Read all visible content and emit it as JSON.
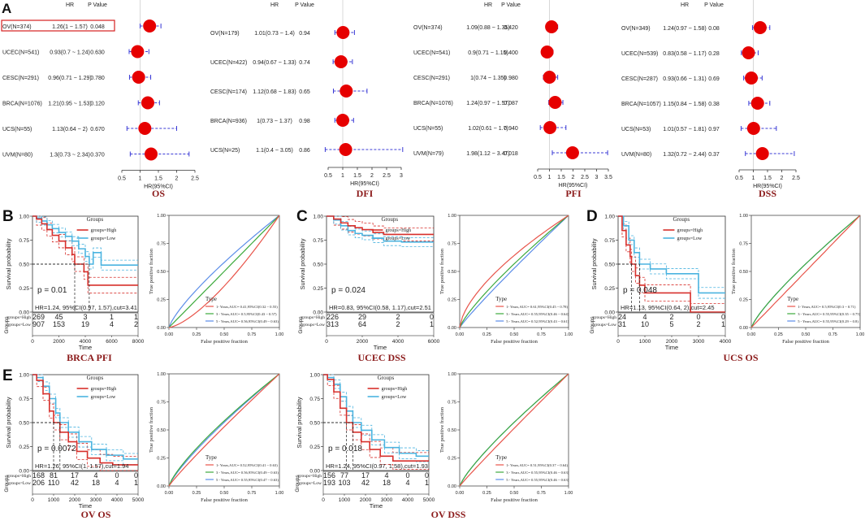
{
  "panel_labels": {
    "a": "A",
    "b": "B",
    "c": "C",
    "d": "D",
    "e": "E"
  },
  "forest_header": {
    "hr": "HR",
    "pvalue": "P Value",
    "axis_title": "HR(95%CI)"
  },
  "survival_common": {
    "ylabel": "Survival probability",
    "xlabel": "Time",
    "groups_title": "Groups",
    "legend_high": "groups=High",
    "legend_low": "groups=Low",
    "risk_ylabel": "Groups",
    "risk_high": "groups=High",
    "risk_low": "groups=Low",
    "yticks": [
      "1.00",
      "0.75",
      "0.50",
      "0.25",
      "0.00"
    ]
  },
  "roc_common": {
    "ylabel": "True positive fraction",
    "xlabel": "False positive fraction",
    "type_title": "Type",
    "ticks": [
      "0.00",
      "0.25",
      "0.50",
      "0.75",
      "1.00"
    ]
  },
  "colors": {
    "high": "#d7302c",
    "low": "#4bb4e0",
    "roc1": "#e8544a",
    "roc3": "#3daa3d",
    "roc5": "#5b8de8",
    "caption": "#8b1a1a",
    "dot": "#e60000",
    "ci": "#3b3bd6"
  },
  "chart_data": [
    {
      "type": "forest",
      "name": "forest-os",
      "caption": "OS",
      "highlight": 0,
      "xlim": [
        0.5,
        2.5
      ],
      "ticks": [
        "0.5",
        "1",
        "1.5",
        "2",
        "2.5"
      ],
      "rows": [
        {
          "label": "OV(N=374)",
          "hr_text": "1.26(1 ~ 1.57)",
          "p": "0.048",
          "hr": 1.26,
          "lo": 1.0,
          "hi": 1.57
        },
        {
          "label": "UCEC(N=541)",
          "hr_text": "0.93(0.7 ~ 1.24)",
          "p": "0.630",
          "hr": 0.93,
          "lo": 0.7,
          "hi": 1.24
        },
        {
          "label": "CESC(N=291)",
          "hr_text": "0.96(0.71 ~ 1.29)",
          "p": "0.780",
          "hr": 0.96,
          "lo": 0.71,
          "hi": 1.29
        },
        {
          "label": "BRCA(N=1076)",
          "hr_text": "1.21(0.95 ~ 1.53)",
          "p": "0.120",
          "hr": 1.21,
          "lo": 0.95,
          "hi": 1.53
        },
        {
          "label": "UCS(N=55)",
          "hr_text": "1.13(0.64 ~ 2)",
          "p": "0.670",
          "hr": 1.13,
          "lo": 0.64,
          "hi": 2.0
        },
        {
          "label": "UVM(N=80)",
          "hr_text": "1.3(0.73 ~ 2.34)",
          "p": "0.370",
          "hr": 1.3,
          "lo": 0.73,
          "hi": 2.34
        }
      ]
    },
    {
      "type": "forest",
      "name": "forest-dfi",
      "caption": "DFI",
      "highlight": -1,
      "xlim": [
        0.5,
        3
      ],
      "ticks": [
        "0.5",
        "1",
        "1.5",
        "2",
        "2.5",
        "3"
      ],
      "rows": [
        {
          "label": "OV(N=179)",
          "hr_text": "1.01(0.73 ~ 1.4)",
          "p": "0.94",
          "hr": 1.01,
          "lo": 0.73,
          "hi": 1.4
        },
        {
          "label": "UCEC(N=422)",
          "hr_text": "0.94(0.67 ~ 1.33)",
          "p": "0.74",
          "hr": 0.94,
          "lo": 0.67,
          "hi": 1.33
        },
        {
          "label": "CESC(N=174)",
          "hr_text": "1.12(0.68 ~ 1.83)",
          "p": "0.65",
          "hr": 1.12,
          "lo": 0.68,
          "hi": 1.83
        },
        {
          "label": "BRCA(N=936)",
          "hr_text": "1(0.73 ~ 1.37)",
          "p": "0.98",
          "hr": 1.0,
          "lo": 0.73,
          "hi": 1.37
        },
        {
          "label": "UCS(N=25)",
          "hr_text": "1.1(0.4 ~ 3.05)",
          "p": "0.86",
          "hr": 1.1,
          "lo": 0.4,
          "hi": 3.05
        }
      ]
    },
    {
      "type": "forest",
      "name": "forest-pfi",
      "caption": "PFI",
      "highlight": -1,
      "xlim": [
        0.5,
        3.5
      ],
      "ticks": [
        "0.5",
        "1",
        "1.5",
        "2",
        "2.5",
        "3",
        "3.5"
      ],
      "rows": [
        {
          "label": "OV(N=374)",
          "hr_text": "1.09(0.88 ~ 1.35)",
          "p": "0.420",
          "hr": 1.09,
          "lo": 0.88,
          "hi": 1.35
        },
        {
          "label": "UCEC(N=541)",
          "hr_text": "0.9(0.71 ~ 1.15)",
          "p": "0.400",
          "hr": 0.9,
          "lo": 0.71,
          "hi": 1.15
        },
        {
          "label": "CESC(N=291)",
          "hr_text": "1(0.74 ~ 1.35)",
          "p": "0.980",
          "hr": 1.0,
          "lo": 0.74,
          "hi": 1.35
        },
        {
          "label": "BRCA(N=1076)",
          "hr_text": "1.24(0.97 ~ 1.57)",
          "p": "0.087",
          "hr": 1.24,
          "lo": 0.97,
          "hi": 1.57
        },
        {
          "label": "UCS(N=55)",
          "hr_text": "1.02(0.61 ~ 1.7)",
          "p": "0.940",
          "hr": 1.02,
          "lo": 0.61,
          "hi": 1.7
        },
        {
          "label": "UVM(N=79)",
          "hr_text": "1.98(1.12 ~ 3.47)",
          "p": "0.018",
          "hr": 1.98,
          "lo": 1.12,
          "hi": 3.47
        }
      ]
    },
    {
      "type": "forest",
      "name": "forest-dss",
      "caption": "DSS",
      "highlight": -1,
      "xlim": [
        0.5,
        2.5
      ],
      "ticks": [
        "0.5",
        "1",
        "1.5",
        "2",
        "2.5"
      ],
      "rows": [
        {
          "label": "OV(N=349)",
          "hr_text": "1.24(0.97 ~ 1.58)",
          "p": "0.08",
          "hr": 1.24,
          "lo": 0.97,
          "hi": 1.58
        },
        {
          "label": "UCEC(N=539)",
          "hr_text": "0.83(0.58 ~ 1.17)",
          "p": "0.28",
          "hr": 0.83,
          "lo": 0.58,
          "hi": 1.17
        },
        {
          "label": "CESC(N=287)",
          "hr_text": "0.93(0.66 ~ 1.31)",
          "p": "0.69",
          "hr": 0.93,
          "lo": 0.66,
          "hi": 1.31
        },
        {
          "label": "BRCA(N=1057)",
          "hr_text": "1.15(0.84 ~ 1.58)",
          "p": "0.38",
          "hr": 1.15,
          "lo": 0.84,
          "hi": 1.58
        },
        {
          "label": "UCS(N=53)",
          "hr_text": "1.01(0.57 ~ 1.81)",
          "p": "0.97",
          "hr": 1.01,
          "lo": 0.57,
          "hi": 1.81
        },
        {
          "label": "UVM(N=80)",
          "hr_text": "1.32(0.72 ~ 2.44)",
          "p": "0.37",
          "hr": 1.32,
          "lo": 0.72,
          "hi": 2.44
        }
      ]
    },
    {
      "type": "km",
      "name": "km-brca-pfi",
      "caption": "BRCA PFI",
      "xticks": [
        "0",
        "2000",
        "4000",
        "6000",
        "8000"
      ],
      "xmax": 8000,
      "pvalue": "p = 0.01",
      "hr_text": "HR=1.24, 95%CI(0.97, 1.57),cut=3.41",
      "risk_high": [
        "269",
        "45",
        "3",
        "1",
        "1"
      ],
      "risk_low": [
        "907",
        "153",
        "19",
        "4",
        "2"
      ],
      "median_high": 3200,
      "median_low": 4300,
      "high": [
        [
          0,
          1
        ],
        [
          300,
          0.97
        ],
        [
          700,
          0.92
        ],
        [
          1100,
          0.86
        ],
        [
          1500,
          0.8
        ],
        [
          2000,
          0.74
        ],
        [
          2500,
          0.67
        ],
        [
          3000,
          0.6
        ],
        [
          3200,
          0.5
        ],
        [
          3900,
          0.42
        ],
        [
          4200,
          0.28
        ],
        [
          8000,
          0.28
        ]
      ],
      "low": [
        [
          0,
          1
        ],
        [
          300,
          0.98
        ],
        [
          700,
          0.95
        ],
        [
          1100,
          0.91
        ],
        [
          1500,
          0.87
        ],
        [
          2000,
          0.83
        ],
        [
          2500,
          0.79
        ],
        [
          3000,
          0.74
        ],
        [
          3500,
          0.66
        ],
        [
          4000,
          0.58
        ],
        [
          4300,
          0.5
        ],
        [
          4600,
          0.62
        ],
        [
          5200,
          0.49
        ],
        [
          8000,
          0.49
        ]
      ]
    },
    {
      "type": "km",
      "name": "km-ucec-dss",
      "caption": "UCEC DSS",
      "xticks": [
        "0",
        "2000",
        "4000",
        "6000"
      ],
      "xmax": 6000,
      "pvalue": "p = 0.024",
      "hr_text": "HR=0.83, 95%CI(0.58, 1.17),cut=2.51",
      "risk_high": [
        "226",
        "29",
        "2",
        "0"
      ],
      "risk_low": [
        "313",
        "64",
        "2",
        "1"
      ],
      "median_high": null,
      "median_low": null,
      "high": [
        [
          0,
          1
        ],
        [
          400,
          0.97
        ],
        [
          800,
          0.93
        ],
        [
          1200,
          0.9
        ],
        [
          1600,
          0.88
        ],
        [
          2000,
          0.86
        ],
        [
          2600,
          0.83
        ],
        [
          3200,
          0.81
        ],
        [
          4000,
          0.81
        ],
        [
          6000,
          0.81
        ]
      ],
      "low": [
        [
          0,
          1
        ],
        [
          400,
          0.96
        ],
        [
          800,
          0.9
        ],
        [
          1200,
          0.85
        ],
        [
          1600,
          0.82
        ],
        [
          2000,
          0.8
        ],
        [
          2600,
          0.77
        ],
        [
          3200,
          0.74
        ],
        [
          4200,
          0.73
        ],
        [
          6000,
          0.73
        ]
      ]
    },
    {
      "type": "km",
      "name": "km-ucs-os",
      "caption": "UCS OS",
      "xticks": [
        "0",
        "1000",
        "2000",
        "3000",
        "4000"
      ],
      "xmax": 4000,
      "pvalue": "p = 0.048",
      "hr_text": "HR=1.13, 95%CI(0.64, 2),cut=2.45",
      "risk_high": [
        "24",
        "4",
        "2",
        "0",
        "0"
      ],
      "risk_low": [
        "31",
        "10",
        "5",
        "2",
        "1"
      ],
      "median_high": 500,
      "median_low": 800,
      "high": [
        [
          0,
          1
        ],
        [
          150,
          0.85
        ],
        [
          300,
          0.7
        ],
        [
          450,
          0.58
        ],
        [
          500,
          0.5
        ],
        [
          650,
          0.38
        ],
        [
          800,
          0.28
        ],
        [
          1000,
          0.2
        ],
        [
          2600,
          0.2
        ],
        [
          2700,
          0.0
        ],
        [
          4000,
          0.0
        ]
      ],
      "low": [
        [
          0,
          1
        ],
        [
          200,
          0.9
        ],
        [
          400,
          0.75
        ],
        [
          600,
          0.62
        ],
        [
          800,
          0.5
        ],
        [
          1200,
          0.45
        ],
        [
          1800,
          0.4
        ],
        [
          2600,
          0.4
        ],
        [
          3000,
          0.2
        ],
        [
          4000,
          0.2
        ]
      ]
    },
    {
      "type": "km",
      "name": "km-ov-os",
      "caption": "OV OS",
      "xticks": [
        "0",
        "1000",
        "2000",
        "3000",
        "4000",
        "5000"
      ],
      "xmax": 5000,
      "pvalue": "p = 0.0072",
      "hr_text": "HR=1.26, 95%CI(1, 1.57),cut=1.94",
      "risk_high": [
        "168",
        "81",
        "17",
        "4",
        "0",
        "0"
      ],
      "risk_low": [
        "206",
        "110",
        "42",
        "18",
        "4",
        "1"
      ],
      "median_high": 1000,
      "median_low": 1300,
      "high": [
        [
          0,
          1
        ],
        [
          200,
          0.94
        ],
        [
          500,
          0.8
        ],
        [
          800,
          0.62
        ],
        [
          1000,
          0.5
        ],
        [
          1300,
          0.4
        ],
        [
          1700,
          0.3
        ],
        [
          2100,
          0.2
        ],
        [
          2600,
          0.13
        ],
        [
          3200,
          0.08
        ],
        [
          3800,
          0.06
        ],
        [
          5000,
          0.06
        ]
      ],
      "low": [
        [
          0,
          1
        ],
        [
          200,
          0.97
        ],
        [
          500,
          0.88
        ],
        [
          800,
          0.75
        ],
        [
          1100,
          0.6
        ],
        [
          1300,
          0.5
        ],
        [
          1700,
          0.4
        ],
        [
          2200,
          0.3
        ],
        [
          2800,
          0.22
        ],
        [
          3500,
          0.16
        ],
        [
          4300,
          0.12
        ],
        [
          5000,
          0.12
        ]
      ]
    },
    {
      "type": "km",
      "name": "km-ov-dss",
      "caption": "OV DSS",
      "xticks": [
        "0",
        "1000",
        "2000",
        "3000",
        "4000",
        "5000"
      ],
      "xmax": 5000,
      "pvalue": "p = 0.018",
      "hr_text": "HR=1.24, 95%CI(0.97, 1.58),cut=1.93",
      "risk_high": [
        "156",
        "77",
        "17",
        "4",
        "0",
        "0"
      ],
      "risk_low": [
        "193",
        "103",
        "42",
        "18",
        "4",
        "1"
      ],
      "median_high": 1100,
      "median_low": 1400,
      "high": [
        [
          0,
          1
        ],
        [
          200,
          0.95
        ],
        [
          500,
          0.82
        ],
        [
          800,
          0.65
        ],
        [
          1100,
          0.5
        ],
        [
          1400,
          0.4
        ],
        [
          1800,
          0.3
        ],
        [
          2200,
          0.22
        ],
        [
          2700,
          0.15
        ],
        [
          3300,
          0.1
        ],
        [
          5000,
          0.1
        ]
      ],
      "low": [
        [
          0,
          1
        ],
        [
          200,
          0.97
        ],
        [
          500,
          0.9
        ],
        [
          800,
          0.77
        ],
        [
          1100,
          0.62
        ],
        [
          1400,
          0.5
        ],
        [
          1800,
          0.42
        ],
        [
          2300,
          0.32
        ],
        [
          2900,
          0.24
        ],
        [
          3600,
          0.18
        ],
        [
          4400,
          0.15
        ],
        [
          5000,
          0.15
        ]
      ]
    },
    {
      "type": "roc",
      "name": "roc-brca-pfi",
      "labels": [
        "1- Years,AUC= 0.41,95%CI(0.32 ~ 0.55)",
        "3 - Years,AUC= 0.5,95%CI(0.43 ~ 0.57)",
        "5 - Years,AUC= 0.56,95%CI(0.49 ~ 0.63)"
      ],
      "auc": [
        0.41,
        0.5,
        0.56
      ]
    },
    {
      "type": "roc",
      "name": "roc-ucec-dss",
      "labels": [
        "1- Years,AUC= 0.61,95%CI(0.45 ~ 0.78)",
        "3 - Years,AUC= 0.55,95%CI(0.46 ~ 0.64)",
        "5 - Years,AUC= 0.52,95%CI(0.43 ~ 0.61)"
      ],
      "auc": [
        0.61,
        0.55,
        0.52
      ]
    },
    {
      "type": "roc",
      "name": "roc-ucs-os",
      "labels": [
        "1- Years,AUC= 0.5,95%CI(0.3 ~ 0.71)",
        "3 - Years,AUC= 0.55,95%CI(0.35 ~ 0.75)",
        "5 - Years,AUC= 0.55,95%CI(0.29 ~ 0.8)"
      ],
      "auc": [
        0.5,
        0.55,
        0.55
      ]
    },
    {
      "type": "roc",
      "name": "roc-ov-os",
      "labels": [
        "1- Years,AUC= 0.52,95%CI(0.41 ~ 0.63)",
        "3 - Years,AUC= 0.56,95%CI(0.49 ~ 0.63)",
        "5 - Years,AUC= 0.55,95%CI(0.47 ~ 0.63)"
      ],
      "auc": [
        0.52,
        0.56,
        0.55
      ]
    },
    {
      "type": "roc",
      "name": "roc-ov-dss",
      "labels": [
        "1- Years,AUC= 0.51,95%CI(0.37 ~ 0.64)",
        "3 - Years,AUC= 0.55,95%CI(0.46 ~ 0.63)",
        "5 - Years,AUC= 0.55,95%CI(0.46 ~ 0.63)"
      ],
      "auc": [
        0.51,
        0.55,
        0.55
      ]
    }
  ]
}
